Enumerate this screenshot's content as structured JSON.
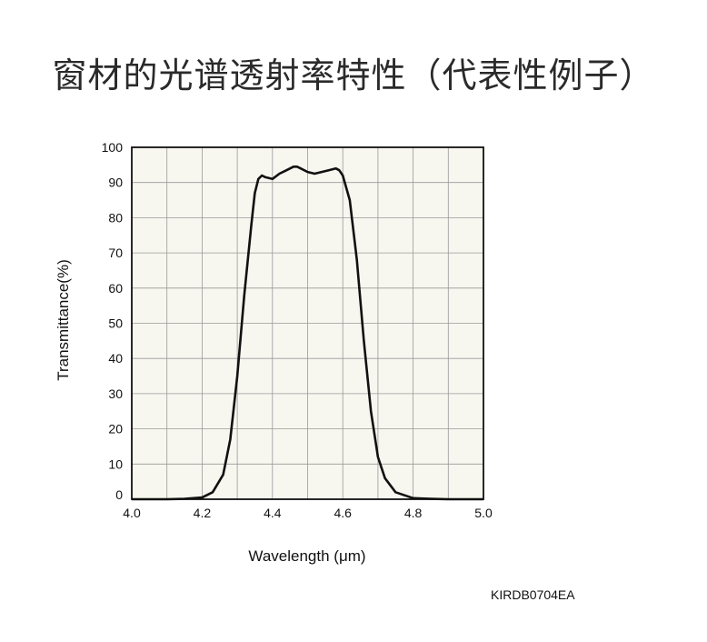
{
  "title": "窗材的光谱透射率特性（代表性例子）",
  "code": "KIRDB0704EA",
  "colors": {
    "plot_bg": "#f7f6ef",
    "grid": "#9a9a9a",
    "frame": "#111111",
    "line": "#111111"
  },
  "chart_data": {
    "type": "line",
    "title": "窗材的光谱透射率特性（代表性例子）",
    "xlabel": "Wavelength (μm)",
    "ylabel": "Transmittance(%)",
    "xlim": [
      4.0,
      5.0
    ],
    "ylim": [
      0,
      100
    ],
    "x_ticks": [
      4.0,
      4.2,
      4.4,
      4.6,
      4.8,
      5.0
    ],
    "x_tick_labels": [
      "4.0",
      "4.2",
      "4.4",
      "4.6",
      "4.8",
      "5.0"
    ],
    "y_ticks": [
      0,
      10,
      20,
      30,
      40,
      50,
      60,
      70,
      80,
      90,
      100
    ],
    "y_tick_labels": [
      "0",
      "10",
      "20",
      "30",
      "40",
      "50",
      "60",
      "70",
      "80",
      "90",
      "100"
    ],
    "x_minor_step": 0.1,
    "grid": true,
    "series": [
      {
        "x": [
          4.0,
          4.1,
          4.15,
          4.2,
          4.23,
          4.26,
          4.28,
          4.3,
          4.32,
          4.34,
          4.35,
          4.36,
          4.37,
          4.38,
          4.4,
          4.42,
          4.44,
          4.46,
          4.47,
          4.48,
          4.5,
          4.52,
          4.54,
          4.56,
          4.58,
          4.59,
          4.6,
          4.62,
          4.64,
          4.66,
          4.68,
          4.7,
          4.72,
          4.75,
          4.8,
          4.85,
          4.9,
          5.0
        ],
        "y": [
          0,
          0,
          0.1,
          0.5,
          2,
          7,
          17,
          35,
          58,
          78,
          87,
          91,
          92,
          91.5,
          91,
          92.5,
          93.5,
          94.5,
          94.5,
          94,
          93,
          92.5,
          93,
          93.5,
          94,
          93.5,
          92,
          85,
          68,
          45,
          25,
          12,
          6,
          2,
          0.3,
          0.1,
          0,
          0
        ]
      }
    ]
  }
}
